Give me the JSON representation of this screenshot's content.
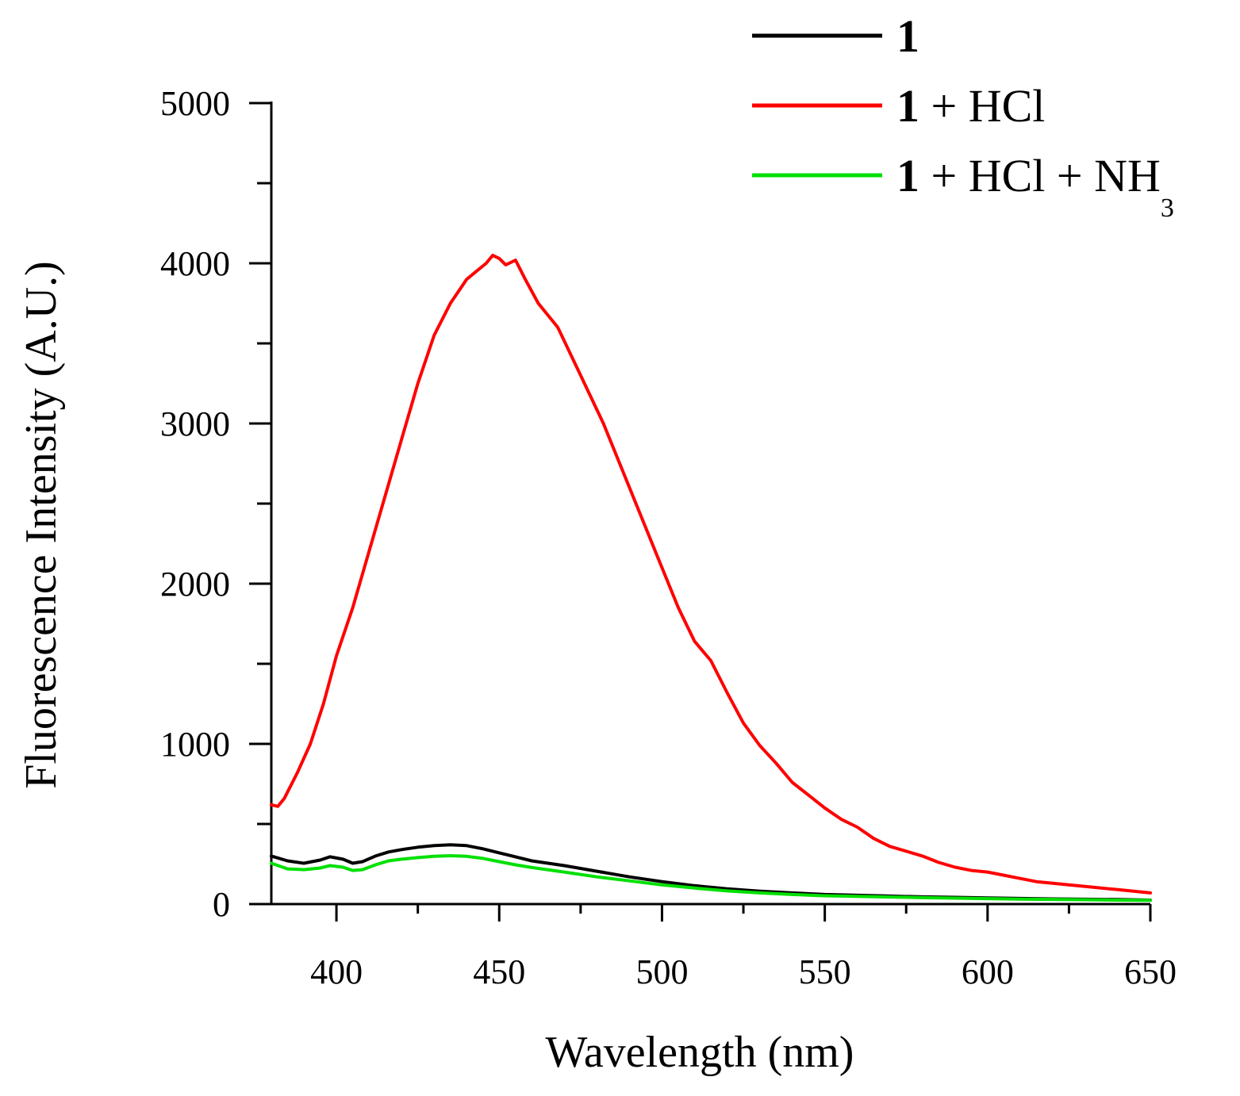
{
  "chart_data": {
    "type": "line",
    "xlabel": "Wavelength (nm)",
    "ylabel": "Fluorescence Intensity (A.U.)",
    "xlim": [
      380,
      650
    ],
    "ylim": [
      0,
      5000
    ],
    "x_ticks": [
      400,
      450,
      500,
      550,
      600,
      650
    ],
    "y_ticks": [
      0,
      1000,
      2000,
      3000,
      4000,
      5000
    ],
    "legend_position": "top-right",
    "series": [
      {
        "name": "1",
        "name_bold": "1",
        "name_rest": "",
        "name_sub": "",
        "color": "#000000",
        "x": [
          380,
          385,
          390,
          395,
          398,
          402,
          405,
          408,
          412,
          416,
          420,
          425,
          430,
          435,
          440,
          445,
          450,
          455,
          460,
          470,
          480,
          490,
          500,
          510,
          520,
          530,
          540,
          550,
          560,
          570,
          580,
          590,
          600,
          610,
          620,
          630,
          640,
          650
        ],
        "y": [
          300,
          270,
          255,
          275,
          295,
          280,
          255,
          265,
          300,
          325,
          340,
          355,
          365,
          370,
          365,
          345,
          320,
          295,
          270,
          240,
          205,
          170,
          140,
          115,
          95,
          80,
          70,
          60,
          55,
          50,
          45,
          42,
          38,
          35,
          32,
          30,
          28,
          25
        ]
      },
      {
        "name": "1 + HCl",
        "name_bold": "1",
        "name_rest": " + HCl",
        "name_sub": "",
        "color": "#ff0000",
        "x": [
          380,
          382,
          384,
          388,
          392,
          396,
          400,
          405,
          410,
          415,
          420,
          425,
          430,
          435,
          440,
          443,
          446,
          448,
          450,
          452,
          455,
          458,
          462,
          468,
          475,
          482,
          490,
          498,
          505,
          510,
          515,
          520,
          525,
          530,
          535,
          540,
          545,
          550,
          555,
          560,
          565,
          570,
          575,
          580,
          585,
          590,
          595,
          600,
          605,
          610,
          615,
          620,
          625,
          630,
          640,
          650
        ],
        "y": [
          620,
          610,
          660,
          820,
          1000,
          1250,
          1550,
          1850,
          2200,
          2550,
          2900,
          3250,
          3550,
          3750,
          3900,
          3950,
          4000,
          4050,
          4030,
          3990,
          4020,
          3900,
          3750,
          3600,
          3300,
          3000,
          2600,
          2200,
          1850,
          1640,
          1520,
          1320,
          1130,
          990,
          880,
          760,
          680,
          600,
          530,
          480,
          410,
          360,
          330,
          300,
          260,
          230,
          210,
          200,
          180,
          160,
          140,
          130,
          120,
          110,
          90,
          70
        ]
      },
      {
        "name": "1 + HCl + NH3",
        "name_bold": "1",
        "name_rest": " + HCl + NH",
        "name_sub": "3",
        "color": "#00e000",
        "x": [
          380,
          385,
          390,
          395,
          398,
          402,
          405,
          408,
          412,
          416,
          420,
          425,
          430,
          435,
          440,
          445,
          450,
          455,
          460,
          470,
          480,
          490,
          500,
          510,
          520,
          530,
          540,
          550,
          560,
          570,
          580,
          590,
          600,
          610,
          620,
          630,
          640,
          650
        ],
        "y": [
          255,
          220,
          215,
          225,
          240,
          230,
          210,
          215,
          245,
          270,
          280,
          290,
          298,
          302,
          298,
          285,
          265,
          245,
          228,
          200,
          170,
          145,
          120,
          100,
          82,
          70,
          60,
          52,
          48,
          44,
          40,
          37,
          34,
          31,
          29,
          27,
          25,
          24
        ]
      }
    ]
  }
}
